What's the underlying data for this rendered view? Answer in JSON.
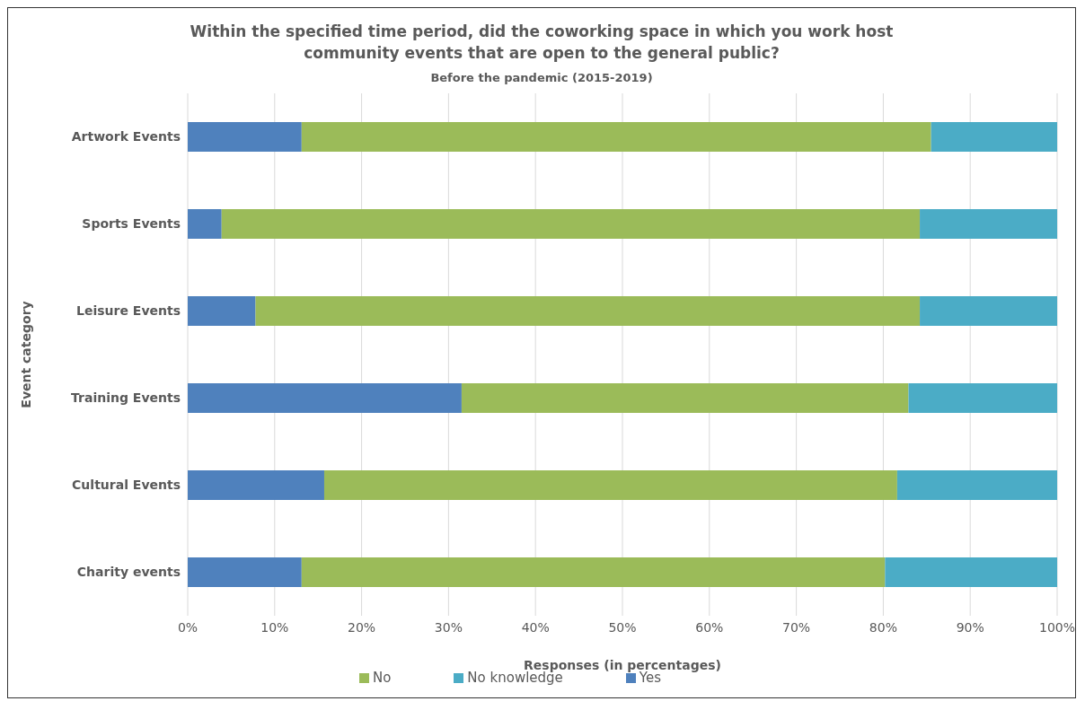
{
  "chart_data": {
    "type": "bar",
    "orientation": "horizontal",
    "stacked": true,
    "title": "Within the specified time period, did the coworking space in which you work host community events that are open to the general public?",
    "subtitle": "Before the pandemic (2015-2019)",
    "xlabel": "Responses (in percentages)",
    "ylabel": "Event category",
    "categories": [
      "Artwork Events",
      "Sports Events",
      "Leisure Events",
      "Training Events",
      "Cultural Events",
      "Charity events"
    ],
    "series": [
      {
        "name": "Yes",
        "color": "#4f81bd",
        "values": [
          13.1,
          3.9,
          7.8,
          31.5,
          15.7,
          13.1
        ]
      },
      {
        "name": "No",
        "color": "#9bbb59",
        "values": [
          72.4,
          80.3,
          76.4,
          51.4,
          65.9,
          67.1
        ]
      },
      {
        "name": "No knowledge",
        "color": "#4bacc6",
        "values": [
          14.5,
          15.8,
          15.8,
          17.1,
          18.4,
          19.8
        ]
      }
    ],
    "xlim": [
      0,
      100
    ],
    "xticks": [
      {
        "value": 0,
        "label": "0%"
      },
      {
        "value": 10,
        "label": "10%"
      },
      {
        "value": 20,
        "label": "20%"
      },
      {
        "value": 30,
        "label": "30%"
      },
      {
        "value": 40,
        "label": "40%"
      },
      {
        "value": 50,
        "label": "50%"
      },
      {
        "value": 60,
        "label": "60%"
      },
      {
        "value": 70,
        "label": "70%"
      },
      {
        "value": 80,
        "label": "80%"
      },
      {
        "value": 90,
        "label": "90%"
      },
      {
        "value": 100,
        "label": "100%"
      }
    ],
    "grid": "x",
    "legend": "bottom"
  }
}
